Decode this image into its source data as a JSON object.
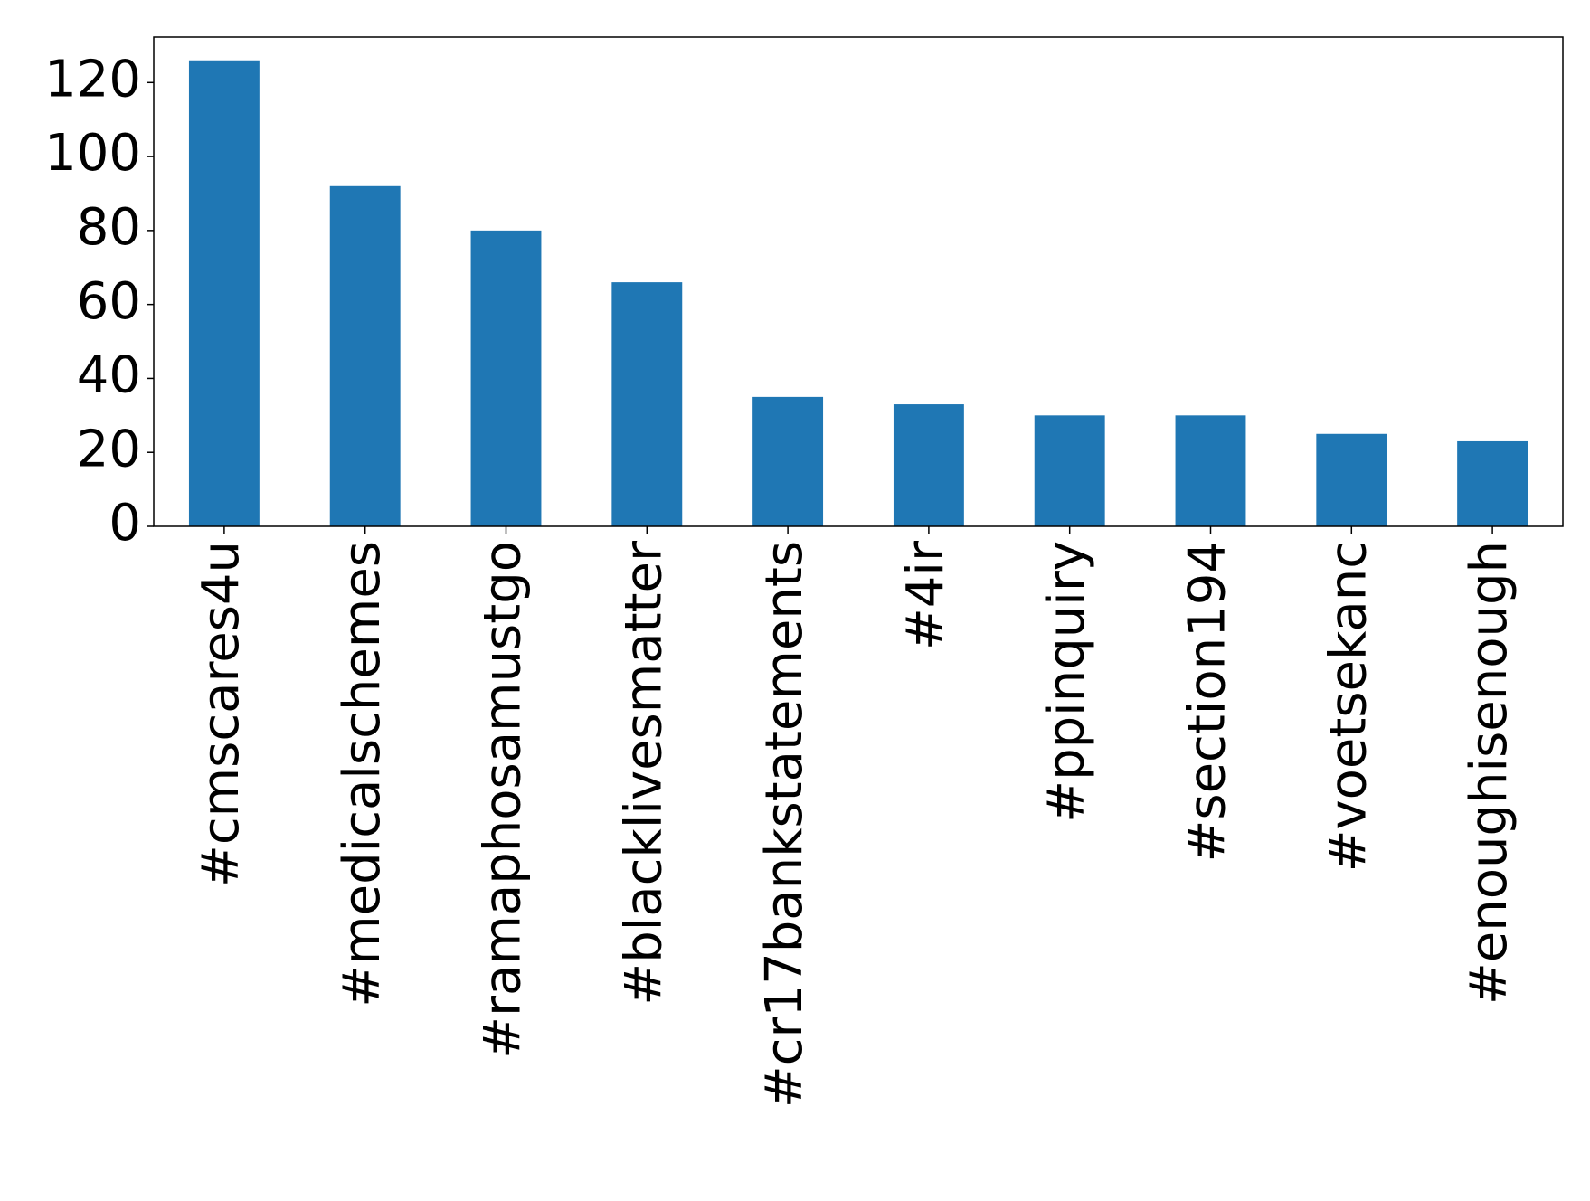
{
  "chart_data": {
    "type": "bar",
    "categories": [
      "#cmscares4u",
      "#medicalschemes",
      "#ramaphosamustgo",
      "#blacklivesmatter",
      "#cr17bankstatements",
      "#4ir",
      "#ppinquiry",
      "#section194",
      "#voetsekanc",
      "#enoughisenough"
    ],
    "values": [
      126,
      92,
      80,
      66,
      35,
      33,
      30,
      30,
      25,
      23
    ],
    "color": "#1f77b4",
    "ylim": [
      0,
      132.3
    ],
    "yticks": [
      0,
      20,
      40,
      60,
      80,
      100,
      120
    ],
    "grid": false
  }
}
